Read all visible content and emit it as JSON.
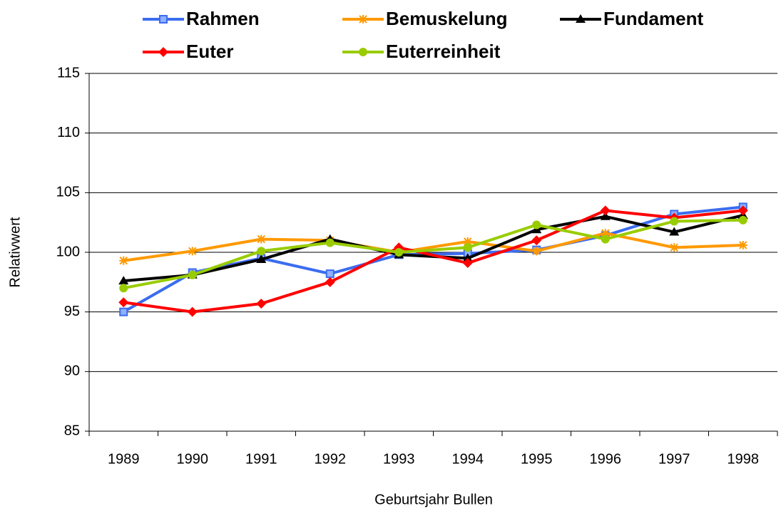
{
  "chart_data": {
    "type": "line",
    "x_label": "Geburtsjahr Bullen",
    "y_label": "Relativwert",
    "categories": [
      "1989",
      "1990",
      "1991",
      "1992",
      "1993",
      "1994",
      "1995",
      "1996",
      "1997",
      "1998"
    ],
    "ylim": [
      85,
      115
    ],
    "yticks": [
      85,
      90,
      95,
      100,
      105,
      110,
      115
    ],
    "grid": true,
    "legend": "top",
    "series": [
      {
        "name": "Rahmen",
        "color": "#3b6cf0",
        "marker": "square",
        "values": [
          95.0,
          98.3,
          99.5,
          98.2,
          99.8,
          99.9,
          100.2,
          101.4,
          103.2,
          103.8
        ]
      },
      {
        "name": "Bemuskelung",
        "color": "#ff9900",
        "marker": "star",
        "values": [
          99.3,
          100.1,
          101.1,
          101.0,
          100.0,
          100.9,
          100.1,
          101.6,
          100.4,
          100.6
        ]
      },
      {
        "name": "Fundament",
        "color": "#000000",
        "marker": "triangle",
        "values": [
          97.6,
          98.1,
          99.4,
          101.1,
          99.8,
          99.5,
          101.9,
          103.0,
          101.7,
          103.1
        ]
      },
      {
        "name": "Euter",
        "color": "#ff0000",
        "marker": "diamond",
        "values": [
          95.8,
          95.0,
          95.7,
          97.5,
          100.4,
          99.1,
          101.0,
          103.5,
          102.9,
          103.5
        ]
      },
      {
        "name": "Euterreinheit",
        "color": "#99cc00",
        "marker": "circle",
        "values": [
          97.0,
          98.1,
          100.1,
          100.8,
          100.0,
          100.4,
          102.3,
          101.1,
          102.6,
          102.7
        ]
      }
    ]
  }
}
